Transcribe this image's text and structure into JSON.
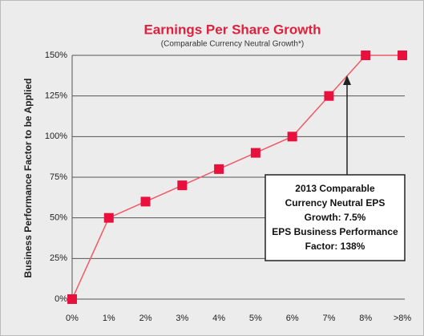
{
  "chart_data": {
    "type": "line",
    "title": "Earnings Per Share Growth",
    "subtitle": "(Comparable Currency Neutral Growth*)",
    "y_label": "Business Performance Factor to be Applied",
    "categories": [
      "0%",
      "1%",
      "2%",
      "3%",
      "4%",
      "5%",
      "6%",
      "7%",
      "8%",
      ">8%"
    ],
    "series": [
      {
        "name": "Business Performance Factor",
        "color": "#e8103c",
        "values": [
          0,
          50,
          60,
          70,
          80,
          90,
          100,
          125,
          150,
          150
        ]
      }
    ],
    "ylim": [
      0,
      150
    ],
    "yticks": [
      {
        "value": 0,
        "label": "0%"
      },
      {
        "value": 25,
        "label": "25%"
      },
      {
        "value": 50,
        "label": "50%"
      },
      {
        "value": 75,
        "label": "75%"
      },
      {
        "value": 100,
        "label": "100%"
      },
      {
        "value": 125,
        "label": "125%"
      },
      {
        "value": 150,
        "label": "150%"
      }
    ],
    "grid": true,
    "annotation": [
      "2013 Comparable",
      "Currency Neutral EPS",
      "Growth: 7.5%",
      "EPS Business Performance",
      "Factor: 138%"
    ]
  }
}
